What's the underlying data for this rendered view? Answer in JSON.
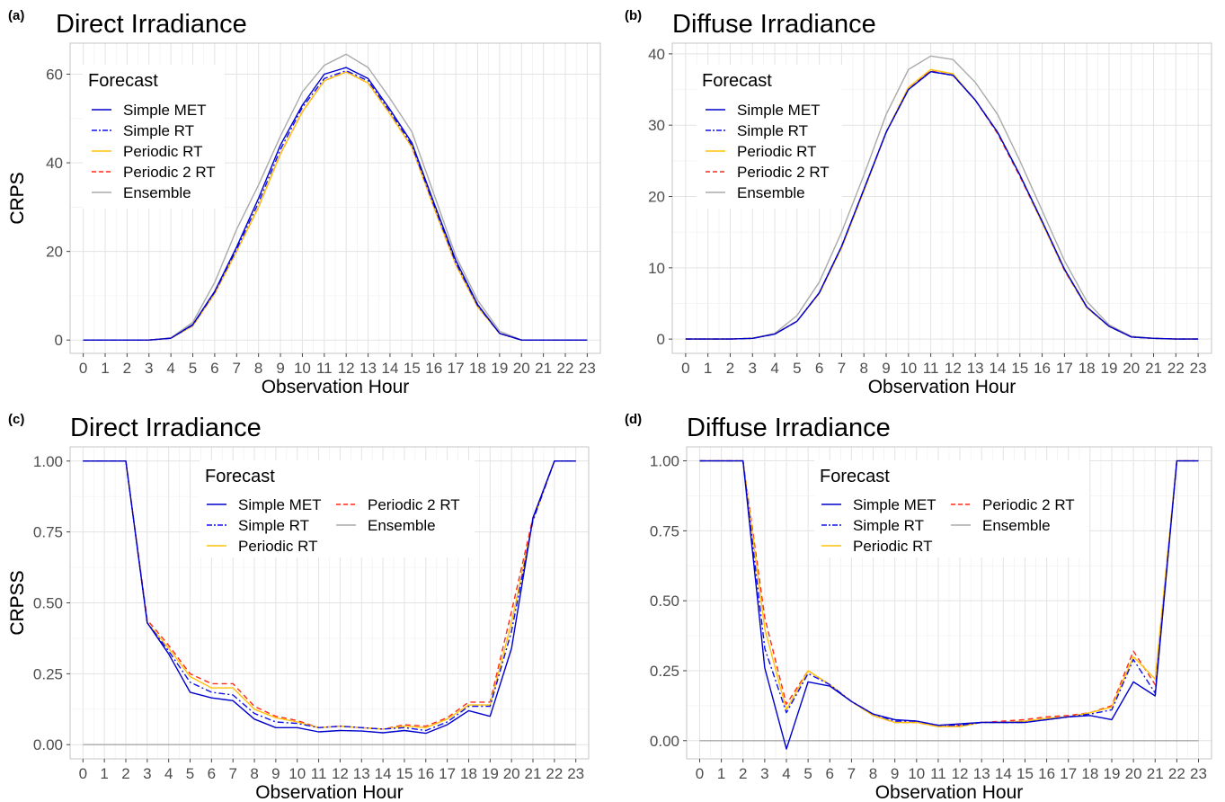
{
  "chart_data": [
    {
      "panel_tag": "(a)",
      "title": "Direct Irradiance",
      "type": "line",
      "xlabel": "Observation Hour",
      "ylabel": "CRPS",
      "x": [
        0,
        1,
        2,
        3,
        4,
        5,
        6,
        7,
        8,
        9,
        10,
        11,
        12,
        13,
        14,
        15,
        16,
        17,
        18,
        19,
        20,
        21,
        22,
        23
      ],
      "ylim": [
        -3,
        67
      ],
      "yticks": [
        0,
        20,
        40,
        60
      ],
      "grid": true,
      "legend_title": "Forecast",
      "legend_position": "top-left",
      "series": [
        {
          "name": "Simple MET",
          "color": "#0000cc",
          "dash": "solid",
          "values": [
            0,
            0,
            0,
            0,
            0.4,
            3.5,
            11,
            21,
            32,
            44,
            53,
            60,
            61.5,
            59,
            52,
            44.5,
            31,
            18,
            8,
            1.5,
            0,
            0,
            0,
            0
          ]
        },
        {
          "name": "Simple RT",
          "color": "#1010ee",
          "dash": "dashdot",
          "values": [
            0,
            0,
            0,
            0,
            0.4,
            3.4,
            10.8,
            20.5,
            31,
            43,
            52.5,
            59,
            60.8,
            58.5,
            51.5,
            44,
            30.5,
            17.5,
            7.8,
            1.5,
            0,
            0,
            0,
            0
          ]
        },
        {
          "name": "Periodic RT",
          "color": "#ffc20a",
          "dash": "solid",
          "values": [
            0,
            0,
            0,
            0,
            0.4,
            3.2,
            10.5,
            20,
            30,
            42,
            51.5,
            58.5,
            60.5,
            58,
            51,
            43.5,
            30,
            17,
            7.5,
            1.5,
            0,
            0,
            0,
            0
          ]
        },
        {
          "name": "Periodic 2 RT",
          "color": "#ff2a1a",
          "dash": "dashed",
          "values": [
            0,
            0,
            0,
            0,
            0.4,
            3.2,
            10.5,
            20,
            30,
            42,
            51.5,
            58.5,
            60.5,
            58,
            51,
            43.5,
            30,
            17,
            7.5,
            1.5,
            0,
            0,
            0,
            0
          ]
        },
        {
          "name": "Ensemble",
          "color": "#aaaaaa",
          "dash": "solid",
          "values": [
            0,
            0,
            0,
            0,
            0.5,
            4,
            13,
            25,
            35,
            46,
            56,
            62,
            64.5,
            61.5,
            54.5,
            47,
            33,
            19,
            9,
            2,
            0,
            0,
            0,
            0
          ]
        }
      ]
    },
    {
      "panel_tag": "(b)",
      "title": "Diffuse Irradiance",
      "type": "line",
      "xlabel": "Observation Hour",
      "ylabel": "CRPS",
      "x": [
        0,
        1,
        2,
        3,
        4,
        5,
        6,
        7,
        8,
        9,
        10,
        11,
        12,
        13,
        14,
        15,
        16,
        17,
        18,
        19,
        20,
        21,
        22,
        23
      ],
      "ylim": [
        -2,
        41.5
      ],
      "yticks": [
        0,
        10,
        20,
        30,
        40
      ],
      "grid": true,
      "legend_title": "Forecast",
      "legend_position": "top-left",
      "series": [
        {
          "name": "Simple MET",
          "color": "#0000cc",
          "dash": "solid",
          "values": [
            0,
            0,
            0,
            0.1,
            0.7,
            2.5,
            6.5,
            13,
            21,
            29,
            35,
            37.5,
            37,
            33.5,
            29,
            23,
            16.5,
            9.8,
            4.5,
            1.8,
            0.3,
            0.1,
            0,
            0
          ]
        },
        {
          "name": "Simple RT",
          "color": "#1010ee",
          "dash": "dashdot",
          "values": [
            0,
            0,
            0,
            0.1,
            0.7,
            2.5,
            6.5,
            13,
            21,
            29,
            35,
            37.5,
            37,
            33.5,
            29,
            23,
            16.5,
            9.8,
            4.5,
            1.8,
            0.3,
            0.1,
            0,
            0
          ]
        },
        {
          "name": "Periodic RT",
          "color": "#ffc20a",
          "dash": "solid",
          "values": [
            0,
            0,
            0,
            0.1,
            0.7,
            2.5,
            6.4,
            12.8,
            20.8,
            29,
            35.3,
            37.8,
            37.2,
            33.5,
            29,
            23,
            16.3,
            9.7,
            4.4,
            1.8,
            0.3,
            0.1,
            0,
            0
          ]
        },
        {
          "name": "Periodic 2 RT",
          "color": "#ff2a1a",
          "dash": "dashed",
          "values": [
            0,
            0,
            0,
            0.1,
            0.7,
            2.5,
            6.4,
            12.8,
            20.8,
            29,
            35.3,
            37.6,
            37,
            33.5,
            28.8,
            22.8,
            16.3,
            9.6,
            4.4,
            1.8,
            0.3,
            0.1,
            0,
            0
          ]
        },
        {
          "name": "Ensemble",
          "color": "#aaaaaa",
          "dash": "solid",
          "values": [
            0,
            0,
            0,
            0.1,
            0.8,
            3.3,
            8,
            15,
            23,
            31.5,
            37.8,
            39.7,
            39.2,
            36,
            31.5,
            25,
            18,
            11,
            5.3,
            2,
            0.4,
            0.1,
            0,
            0
          ]
        }
      ]
    },
    {
      "panel_tag": "(c)",
      "title": "Direct Irradiance",
      "type": "line",
      "xlabel": "Observation Hour",
      "ylabel": "CRPSS",
      "x": [
        0,
        1,
        2,
        3,
        4,
        5,
        6,
        7,
        8,
        9,
        10,
        11,
        12,
        13,
        14,
        15,
        16,
        17,
        18,
        19,
        20,
        21,
        22,
        23
      ],
      "ylim": [
        -0.05,
        1.05
      ],
      "yticks": [
        "0.00",
        "0.25",
        "0.50",
        "0.75",
        "1.00"
      ],
      "grid": true,
      "legend_title": "Forecast",
      "legend_position": "top-center",
      "series": [
        {
          "name": "Simple MET",
          "color": "#0000cc",
          "dash": "solid",
          "values": [
            1,
            1,
            1,
            0.43,
            0.32,
            0.185,
            0.165,
            0.155,
            0.09,
            0.06,
            0.06,
            0.045,
            0.05,
            0.048,
            0.042,
            0.05,
            0.04,
            0.07,
            0.12,
            0.1,
            0.34,
            0.8,
            1,
            1
          ]
        },
        {
          "name": "Simple RT",
          "color": "#1010ee",
          "dash": "dashdot",
          "values": [
            1,
            1,
            1,
            0.43,
            0.33,
            0.22,
            0.185,
            0.175,
            0.11,
            0.08,
            0.075,
            0.06,
            0.065,
            0.06,
            0.055,
            0.06,
            0.05,
            0.08,
            0.135,
            0.135,
            0.4,
            0.79,
            1,
            1
          ]
        },
        {
          "name": "Periodic RT",
          "color": "#ffc20a",
          "dash": "solid",
          "values": [
            1,
            1,
            1,
            0.43,
            0.34,
            0.24,
            0.2,
            0.2,
            0.125,
            0.095,
            0.08,
            0.06,
            0.065,
            0.06,
            0.055,
            0.065,
            0.06,
            0.09,
            0.14,
            0.14,
            0.43,
            0.79,
            1,
            1
          ]
        },
        {
          "name": "Periodic 2 RT",
          "color": "#ff2a1a",
          "dash": "dashed",
          "values": [
            1,
            1,
            1,
            0.44,
            0.35,
            0.25,
            0.215,
            0.215,
            0.135,
            0.1,
            0.085,
            0.06,
            0.065,
            0.06,
            0.055,
            0.07,
            0.065,
            0.095,
            0.15,
            0.15,
            0.47,
            0.8,
            1,
            1
          ]
        },
        {
          "name": "Ensemble",
          "color": "#aaaaaa",
          "dash": "solid",
          "values": [
            0,
            0,
            0,
            0,
            0,
            0,
            0,
            0,
            0,
            0,
            0,
            0,
            0,
            0,
            0,
            0,
            0,
            0,
            0,
            0,
            0,
            0,
            0,
            0
          ]
        }
      ]
    },
    {
      "panel_tag": "(d)",
      "title": "Diffuse Irradiance",
      "type": "line",
      "xlabel": "Observation Hour",
      "ylabel": "CRPSS",
      "x": [
        0,
        1,
        2,
        3,
        4,
        5,
        6,
        7,
        8,
        9,
        10,
        11,
        12,
        13,
        14,
        15,
        16,
        17,
        18,
        19,
        20,
        21,
        22,
        23
      ],
      "ylim": [
        -0.065,
        1.05
      ],
      "yticks": [
        "0.00",
        "0.25",
        "0.50",
        "0.75",
        "1.00"
      ],
      "grid": true,
      "legend_title": "Forecast",
      "legend_position": "top-center",
      "series": [
        {
          "name": "Simple MET",
          "color": "#0000cc",
          "dash": "solid",
          "values": [
            1,
            1,
            1,
            0.26,
            -0.03,
            0.21,
            0.195,
            0.14,
            0.095,
            0.075,
            0.07,
            0.055,
            0.06,
            0.065,
            0.065,
            0.065,
            0.075,
            0.085,
            0.09,
            0.075,
            0.21,
            0.16,
            1,
            1
          ]
        },
        {
          "name": "Simple RT",
          "color": "#1010ee",
          "dash": "dashdot",
          "values": [
            1,
            1,
            1,
            0.33,
            0.1,
            0.24,
            0.2,
            0.14,
            0.095,
            0.07,
            0.07,
            0.055,
            0.055,
            0.065,
            0.065,
            0.065,
            0.075,
            0.085,
            0.095,
            0.11,
            0.29,
            0.17,
            1,
            1
          ]
        },
        {
          "name": "Periodic RT",
          "color": "#ffc20a",
          "dash": "solid",
          "values": [
            1,
            1,
            1,
            0.4,
            0.11,
            0.25,
            0.2,
            0.14,
            0.09,
            0.065,
            0.065,
            0.05,
            0.05,
            0.065,
            0.065,
            0.07,
            0.08,
            0.085,
            0.1,
            0.12,
            0.3,
            0.22,
            1,
            1
          ]
        },
        {
          "name": "Periodic 2 RT",
          "color": "#ff2a1a",
          "dash": "dashed",
          "values": [
            1,
            1,
            1,
            0.44,
            0.13,
            0.25,
            0.2,
            0.14,
            0.09,
            0.065,
            0.065,
            0.05,
            0.055,
            0.065,
            0.07,
            0.075,
            0.085,
            0.09,
            0.1,
            0.125,
            0.32,
            0.2,
            1,
            1
          ]
        },
        {
          "name": "Ensemble",
          "color": "#aaaaaa",
          "dash": "solid",
          "values": [
            0,
            0,
            0,
            0,
            0,
            0,
            0,
            0,
            0,
            0,
            0,
            0,
            0,
            0,
            0,
            0,
            0,
            0,
            0,
            0,
            0,
            0,
            0,
            0
          ]
        }
      ]
    }
  ]
}
